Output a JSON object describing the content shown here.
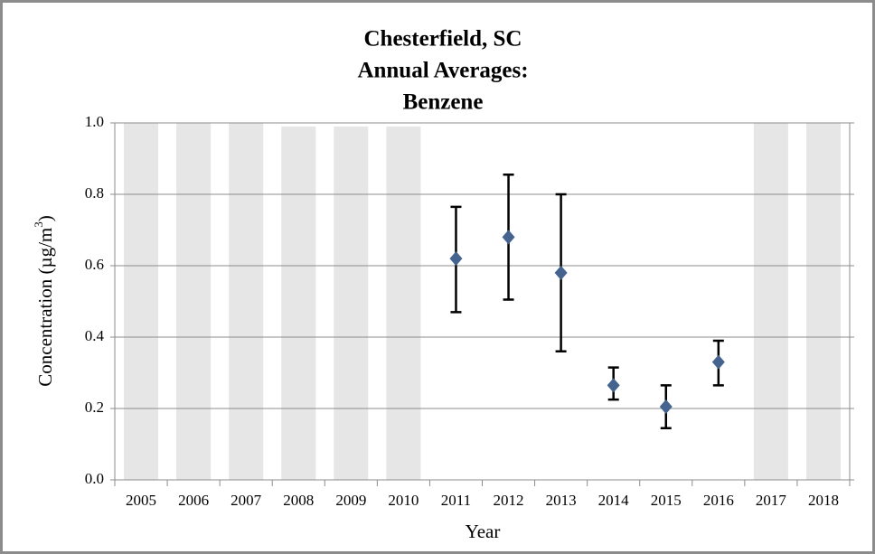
{
  "chart_data": {
    "type": "scatter",
    "title": [
      "Chesterfield, SC",
      "Annual Averages:",
      "Benzene"
    ],
    "xlabel": "Year",
    "ylabel": [
      "Concentration (µg/m",
      "3",
      ")"
    ],
    "categories": [
      "2005",
      "2006",
      "2007",
      "2008",
      "2009",
      "2010",
      "2011",
      "2012",
      "2013",
      "2014",
      "2015",
      "2016",
      "2017",
      "2018"
    ],
    "shading": {
      "color": "#e6e6e6",
      "values": [
        1.0,
        1.0,
        1.0,
        0.99,
        0.99,
        0.99,
        null,
        null,
        null,
        null,
        null,
        null,
        1.0,
        1.0
      ]
    },
    "series": [
      {
        "color": "#44638f",
        "values": [
          null,
          null,
          null,
          null,
          null,
          null,
          0.62,
          0.68,
          0.58,
          0.265,
          0.205,
          0.33,
          null,
          null
        ],
        "lower": [
          null,
          null,
          null,
          null,
          null,
          null,
          0.47,
          0.505,
          0.36,
          0.225,
          0.145,
          0.265,
          null,
          null
        ],
        "upper": [
          null,
          null,
          null,
          null,
          null,
          null,
          0.765,
          0.855,
          0.8,
          0.315,
          0.265,
          0.39,
          null,
          null
        ]
      }
    ],
    "ylim": [
      0,
      1
    ],
    "yticks": [
      {
        "value": 0,
        "label": "0.0"
      },
      0.2,
      0.4,
      0.6,
      0.8,
      {
        "value": 1,
        "label": "1.0"
      }
    ],
    "grid": true
  }
}
